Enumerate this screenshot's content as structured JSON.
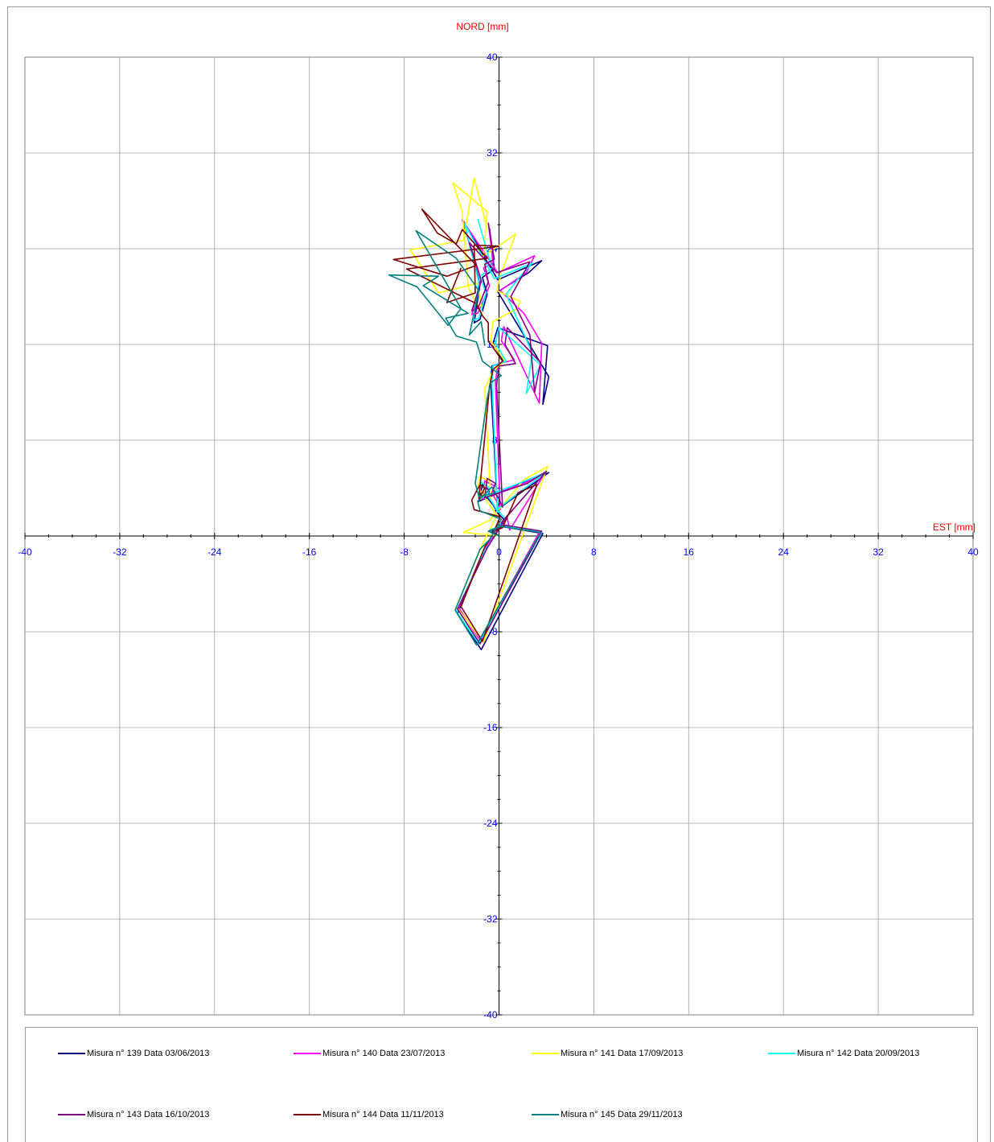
{
  "chart_data": {
    "type": "line",
    "xlabel": "EST [mm]",
    "ylabel": "NORD  [mm]",
    "xlim": [
      -40,
      40
    ],
    "ylim": [
      -40,
      40
    ],
    "x_ticks": [
      "-40",
      "-32",
      "-24",
      "-16",
      "-8",
      "0",
      "8",
      "16",
      "24",
      "32",
      "40"
    ],
    "y_ticks": [
      "40",
      "32",
      "24",
      "16",
      "8",
      "0",
      "-8",
      "-16",
      "-24",
      "-32",
      "-40"
    ],
    "grid": true,
    "legend_position": "bottom",
    "series": [
      {
        "name": "Misura n° 139 Data 03/06/2013",
        "color": "#000080",
        "points": [
          [
            0,
            0
          ],
          [
            -0.7,
            0.3
          ],
          [
            0.2,
            0.8
          ],
          [
            3.7,
            0.2
          ],
          [
            -1.5,
            -9.5
          ],
          [
            -3.5,
            -6.5
          ],
          [
            -1.3,
            -1.3
          ],
          [
            -0.6,
            -0.3
          ],
          [
            0.4,
            1.4
          ],
          [
            -0.3,
            2.1
          ],
          [
            4.2,
            5.3
          ],
          [
            2.4,
            4.6
          ],
          [
            -1.7,
            2.9
          ],
          [
            -1.4,
            4.3
          ],
          [
            -0.8,
            3.8
          ],
          [
            -1.0,
            3.2
          ],
          [
            -0.5,
            2.6
          ],
          [
            -0.1,
            1.9
          ],
          [
            -0.7,
            12.8
          ],
          [
            -0.6,
            14.2
          ],
          [
            0.4,
            14.5
          ],
          [
            -0.5,
            16.1
          ],
          [
            -0.1,
            17.4
          ],
          [
            4.1,
            15.9
          ],
          [
            3.7,
            11.0
          ],
          [
            4.2,
            13.3
          ],
          [
            -0.1,
            20.4
          ],
          [
            2.5,
            22.0
          ],
          [
            3.6,
            23.0
          ],
          [
            -0.1,
            21.4
          ],
          [
            -3.0,
            26.3
          ],
          [
            -1.6,
            21.0
          ],
          [
            -2.1,
            17.8
          ],
          [
            -1.6,
            18.1
          ],
          [
            -1.0,
            20.2
          ],
          [
            -1.4,
            21.6
          ],
          [
            -0.4,
            22.3
          ],
          [
            -0.8,
            25.7
          ]
        ]
      },
      {
        "name": "Misura n° 140 Data 23/07/2013",
        "color": "#ff00ff",
        "points": [
          [
            0,
            0
          ],
          [
            -0.5,
            0.4
          ],
          [
            0.5,
            0.8
          ],
          [
            3.4,
            0.3
          ],
          [
            -1.6,
            -8.7
          ],
          [
            -3.4,
            -6.0
          ],
          [
            -1.2,
            -1.0
          ],
          [
            -0.5,
            -0.1
          ],
          [
            0.7,
            1.5
          ],
          [
            0.9,
            0.5
          ],
          [
            3.9,
            5.3
          ],
          [
            2.3,
            4.5
          ],
          [
            -1.4,
            3.1
          ],
          [
            -1.2,
            4.6
          ],
          [
            -0.4,
            4.2
          ],
          [
            -0.6,
            3.6
          ],
          [
            -0.2,
            2.9
          ],
          [
            0.1,
            2.2
          ],
          [
            -0.3,
            12.8
          ],
          [
            -0.1,
            14.4
          ],
          [
            1.3,
            14.7
          ],
          [
            0.2,
            16.3
          ],
          [
            0.4,
            17.5
          ],
          [
            3.4,
            11.1
          ],
          [
            3.6,
            16.1
          ],
          [
            2.1,
            18.6
          ],
          [
            0.1,
            20.5
          ],
          [
            2.3,
            22.0
          ],
          [
            3.0,
            23.4
          ],
          [
            -0.1,
            22.0
          ],
          [
            -3.1,
            26.4
          ],
          [
            -1.5,
            21.4
          ],
          [
            -2.3,
            18.5
          ],
          [
            -1.8,
            18.6
          ],
          [
            -0.8,
            20.9
          ],
          [
            -1.3,
            22.4
          ],
          [
            -0.5,
            22.8
          ],
          [
            -0.9,
            26.2
          ]
        ]
      },
      {
        "name": "Misura n° 141 Data 17/09/2013",
        "color": "#ffff00",
        "points": [
          [
            0,
            0
          ],
          [
            -3.0,
            0.3
          ],
          [
            -0.8,
            1.3
          ],
          [
            2.1,
            4.7
          ],
          [
            4.1,
            5.8
          ],
          [
            -1.3,
            -8.9
          ],
          [
            -3.6,
            -5.9
          ],
          [
            -1.4,
            -0.7
          ],
          [
            -0.9,
            0.3
          ],
          [
            -0.2,
            1.7
          ],
          [
            -1.8,
            4.1
          ],
          [
            -1.6,
            5.0
          ],
          [
            -1.0,
            4.6
          ],
          [
            -1.3,
            3.8
          ],
          [
            -0.7,
            3.1
          ],
          [
            -1.2,
            12.3
          ],
          [
            -0.5,
            13.8
          ],
          [
            0.5,
            14.6
          ],
          [
            -0.7,
            16.3
          ],
          [
            -0.5,
            17.9
          ],
          [
            1.5,
            19.0
          ],
          [
            1.8,
            19.6
          ],
          [
            -0.2,
            20.5
          ],
          [
            0.2,
            22.0
          ],
          [
            1.4,
            25.2
          ],
          [
            -1.3,
            23.4
          ],
          [
            -1.0,
            27.1
          ],
          [
            -3.9,
            29.5
          ],
          [
            -3.1,
            27.1
          ],
          [
            -2.6,
            20.8
          ],
          [
            -1.4,
            18.4
          ],
          [
            -1.8,
            21.1
          ],
          [
            -5.1,
            20.3
          ],
          [
            -7.5,
            23.9
          ],
          [
            -3.0,
            24.7
          ],
          [
            -2.1,
            29.9
          ],
          [
            -1.1,
            26.1
          ]
        ]
      },
      {
        "name": "Misura n° 142 Data 20/09/2013",
        "color": "#00ffff",
        "points": [
          [
            0,
            0
          ],
          [
            -0.8,
            0.5
          ],
          [
            0.3,
            0.9
          ],
          [
            3.6,
            0.3
          ],
          [
            -1.7,
            -9.0
          ],
          [
            -3.6,
            -6.3
          ],
          [
            -1.2,
            -1.2
          ],
          [
            -0.5,
            -0.2
          ],
          [
            0.5,
            1.5
          ],
          [
            -0.2,
            2.2
          ],
          [
            3.9,
            5.3
          ],
          [
            2.2,
            4.6
          ],
          [
            -1.7,
            3.1
          ],
          [
            -1.5,
            4.5
          ],
          [
            -0.8,
            4.0
          ],
          [
            -1.0,
            3.4
          ],
          [
            -0.5,
            2.7
          ],
          [
            -0.1,
            2.0
          ],
          [
            -0.6,
            12.8
          ],
          [
            -0.5,
            14.2
          ],
          [
            0.6,
            14.6
          ],
          [
            -0.3,
            16.1
          ],
          [
            0.0,
            17.4
          ],
          [
            3.5,
            14.3
          ],
          [
            2.3,
            11.9
          ],
          [
            2.8,
            15.3
          ],
          [
            0.6,
            20.2
          ],
          [
            1.8,
            21.7
          ],
          [
            2.8,
            22.8
          ],
          [
            -0.4,
            21.5
          ],
          [
            -2.9,
            26.1
          ],
          [
            -1.7,
            21.2
          ],
          [
            -2.2,
            18.0
          ],
          [
            -1.7,
            18.2
          ],
          [
            -1.1,
            20.3
          ],
          [
            -1.6,
            21.7
          ],
          [
            -0.6,
            22.4
          ],
          [
            -1.8,
            26.5
          ]
        ]
      },
      {
        "name": "Misura n° 143 Data 16/10/2013",
        "color": "#800080",
        "points": [
          [
            0,
            0
          ],
          [
            -0.6,
            0.4
          ],
          [
            0.5,
            0.9
          ],
          [
            3.6,
            0.4
          ],
          [
            -1.6,
            -9.0
          ],
          [
            -3.5,
            -6.1
          ],
          [
            -1.0,
            -1.0
          ],
          [
            -0.3,
            0.1
          ],
          [
            0.7,
            1.7
          ],
          [
            0.2,
            1.1
          ],
          [
            4.0,
            5.4
          ],
          [
            2.4,
            4.4
          ],
          [
            -1.2,
            3.2
          ],
          [
            -1.0,
            4.8
          ],
          [
            -0.3,
            4.4
          ],
          [
            -0.5,
            3.8
          ],
          [
            0.0,
            3.1
          ],
          [
            0.3,
            2.4
          ],
          [
            -0.2,
            12.6
          ],
          [
            0.0,
            14.2
          ],
          [
            1.4,
            14.4
          ],
          [
            0.5,
            16.0
          ],
          [
            0.7,
            17.4
          ],
          [
            3.5,
            14.5
          ],
          [
            3.0,
            12.0
          ],
          [
            2.6,
            16.8
          ],
          [
            1.0,
            20.0
          ],
          [
            2.0,
            21.8
          ],
          [
            2.6,
            22.9
          ],
          [
            -0.2,
            22.0
          ],
          [
            -2.5,
            24.5
          ],
          [
            -1.5,
            21.3
          ],
          [
            -2.3,
            18.8
          ],
          [
            -1.8,
            19.0
          ],
          [
            -0.9,
            21.2
          ],
          [
            -1.2,
            22.7
          ],
          [
            -0.4,
            23.1
          ],
          [
            -0.9,
            26.1
          ]
        ]
      },
      {
        "name": "Misura n° 144 Data 11/11/2013",
        "color": "#800000",
        "points": [
          [
            0,
            0
          ],
          [
            -0.6,
            0.3
          ],
          [
            0.3,
            0.7
          ],
          [
            1.6,
            3.6
          ],
          [
            3.2,
            4.3
          ],
          [
            -1.4,
            -8.8
          ],
          [
            -3.2,
            -5.9
          ],
          [
            -1.2,
            -0.9
          ],
          [
            -0.6,
            0.0
          ],
          [
            0.1,
            1.6
          ],
          [
            -2.1,
            2.2
          ],
          [
            -2.3,
            3.0
          ],
          [
            -1.6,
            4.3
          ],
          [
            -1.2,
            4.0
          ],
          [
            -1.7,
            3.1
          ],
          [
            -0.8,
            12.5
          ],
          [
            -0.5,
            13.9
          ],
          [
            0.3,
            14.6
          ],
          [
            -0.9,
            16.3
          ],
          [
            -0.9,
            17.8
          ],
          [
            -1.4,
            18.4
          ],
          [
            -1.9,
            19.4
          ],
          [
            -7.8,
            22.3
          ],
          [
            -1.0,
            23.2
          ],
          [
            -3.1,
            25.6
          ],
          [
            -3.6,
            24.4
          ],
          [
            -5.2,
            25.3
          ],
          [
            -6.5,
            27.3
          ],
          [
            -1.9,
            22.6
          ],
          [
            -4.4,
            21.7
          ],
          [
            -8.9,
            23.1
          ],
          [
            0.0,
            24.2
          ],
          [
            -2.1,
            24.3
          ],
          [
            -2.0,
            20.3
          ],
          [
            -4.4,
            19.5
          ],
          [
            -3.2,
            22.4
          ]
        ]
      },
      {
        "name": "Misura n° 145 Data 29/11/2013",
        "color": "#008080",
        "points": [
          [
            0,
            0
          ],
          [
            -0.9,
            0.4
          ],
          [
            0.1,
            0.8
          ],
          [
            3.5,
            0.3
          ],
          [
            -1.9,
            -9.1
          ],
          [
            -3.7,
            -6.2
          ],
          [
            -1.6,
            -1.1
          ],
          [
            -0.8,
            -0.3
          ],
          [
            0.2,
            1.4
          ],
          [
            -1.6,
            2.1
          ],
          [
            -1.8,
            2.9
          ],
          [
            -0.6,
            4.1
          ],
          [
            -0.3,
            3.6
          ],
          [
            -1.7,
            3.3
          ],
          [
            -2.0,
            4.4
          ],
          [
            -1.0,
            11.5
          ],
          [
            -0.7,
            12.8
          ],
          [
            0.2,
            13.4
          ],
          [
            -1.4,
            14.6
          ],
          [
            -1.9,
            16.2
          ],
          [
            -3.6,
            16.7
          ],
          [
            -4.5,
            18.2
          ],
          [
            -2.6,
            18.6
          ],
          [
            -6.4,
            20.9
          ],
          [
            -5.1,
            21.7
          ],
          [
            -9.3,
            21.8
          ],
          [
            -6.9,
            20.8
          ],
          [
            -4.3,
            17.6
          ],
          [
            -3.2,
            19.0
          ],
          [
            -7.0,
            25.5
          ],
          [
            -3.6,
            23.2
          ],
          [
            -1.7,
            20.5
          ],
          [
            -2.5,
            16.8
          ],
          [
            -1.5,
            17.9
          ],
          [
            -1.2,
            15.9
          ]
        ]
      }
    ]
  }
}
